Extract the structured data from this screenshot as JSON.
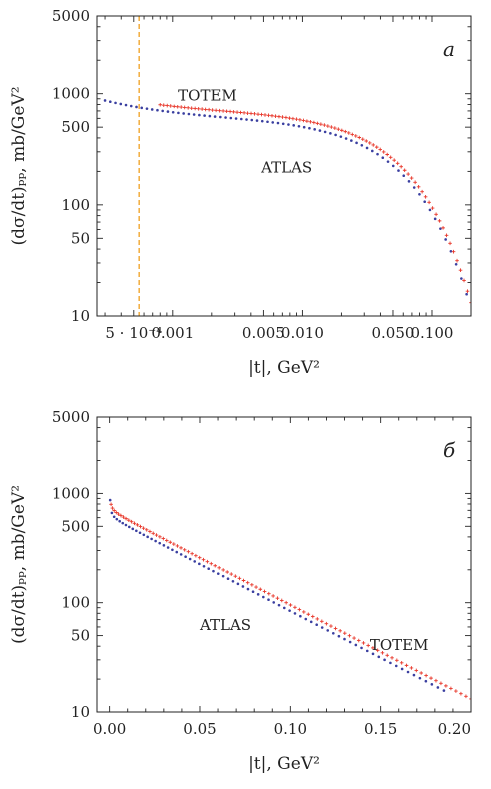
{
  "chart_data": [
    {
      "type": "scatter",
      "panel_letter": "a",
      "xlabel": "|t|, GeV²",
      "ylabel": "(dσ/dt)ₚₚ, mb/GeV²",
      "xscale": "log",
      "yscale": "log",
      "xlim": [
        0.00026,
        0.2
      ],
      "ylim": [
        10,
        5000
      ],
      "x_ticks": [
        {
          "value": 0.0005,
          "label": "5 · 10⁻⁴"
        },
        {
          "value": 0.001,
          "label": "0.001"
        },
        {
          "value": 0.005,
          "label": "0.005"
        },
        {
          "value": 0.01,
          "label": "0.010"
        },
        {
          "value": 0.05,
          "label": "0.050"
        },
        {
          "value": 0.1,
          "label": "0.100"
        }
      ],
      "y_ticks": [
        {
          "value": 10,
          "label": "10"
        },
        {
          "value": 50,
          "label": "50"
        },
        {
          "value": 100,
          "label": "100"
        },
        {
          "value": 500,
          "label": "500"
        },
        {
          "value": 1000,
          "label": "1000"
        },
        {
          "value": 5000,
          "label": "5000"
        }
      ],
      "vline": {
        "x": 0.00055,
        "color": "#f0a020",
        "style": "dashed"
      },
      "grid": false,
      "series_labels": [
        {
          "text": "TOTEM",
          "x": 0.0011,
          "y": 870
        },
        {
          "text": "ATLAS",
          "x": 0.0048,
          "y": 195
        }
      ],
      "series": [
        {
          "name": "TOTEM",
          "color": "#e8372a",
          "marker": "plus",
          "x_range": [
            0.0008,
            0.2
          ],
          "t0": 0.0008,
          "f0": 690,
          "a0": 118,
          "b": 19.8,
          "npoints": 90,
          "log_spacing": true
        },
        {
          "name": "ATLAS",
          "color": "#3a3fa0",
          "marker": "dot",
          "x_range": [
            0.0003,
            0.185
          ],
          "t0": 0.001,
          "f0": 600,
          "a0": 95,
          "b": 19.7,
          "npoints": 70,
          "log_spacing": true
        }
      ]
    },
    {
      "type": "scatter",
      "panel_letter": "б",
      "xlabel": "|t|, GeV²",
      "ylabel": "(dσ/dt)ₚₚ, mb/GeV²",
      "xscale": "linear",
      "yscale": "log",
      "xlim": [
        -0.007,
        0.2
      ],
      "ylim": [
        10,
        5000
      ],
      "x_ticks": [
        {
          "value": 0.0,
          "label": "0.00"
        },
        {
          "value": 0.05,
          "label": "0.05"
        },
        {
          "value": 0.1,
          "label": "0.10"
        },
        {
          "value": 0.15,
          "label": "0.15"
        },
        {
          "value": 0.2,
          "label": "0.20"
        }
      ],
      "y_ticks": [
        {
          "value": 10,
          "label": "10"
        },
        {
          "value": 50,
          "label": "50"
        },
        {
          "value": 100,
          "label": "100"
        },
        {
          "value": 500,
          "label": "500"
        },
        {
          "value": 1000,
          "label": "1000"
        },
        {
          "value": 5000,
          "label": "5000"
        }
      ],
      "grid": false,
      "series_labels": [
        {
          "text": "ATLAS",
          "x": 0.05,
          "y": 56
        },
        {
          "text": "TOTEM",
          "x": 0.144,
          "y": 37
        }
      ],
      "series": [
        {
          "name": "TOTEM",
          "color": "#e8372a",
          "marker": "plus",
          "x_range": [
            0.0008,
            0.2
          ],
          "t0": 0.0008,
          "f0": 690,
          "a0": 118,
          "b": 19.8,
          "npoints": 90,
          "log_spacing": false
        },
        {
          "name": "ATLAS",
          "color": "#3a3fa0",
          "marker": "dot",
          "x_range": [
            0.0003,
            0.185
          ],
          "t0": 0.001,
          "f0": 600,
          "a0": 95,
          "b": 19.7,
          "npoints": 70,
          "log_spacing": false
        }
      ]
    }
  ]
}
